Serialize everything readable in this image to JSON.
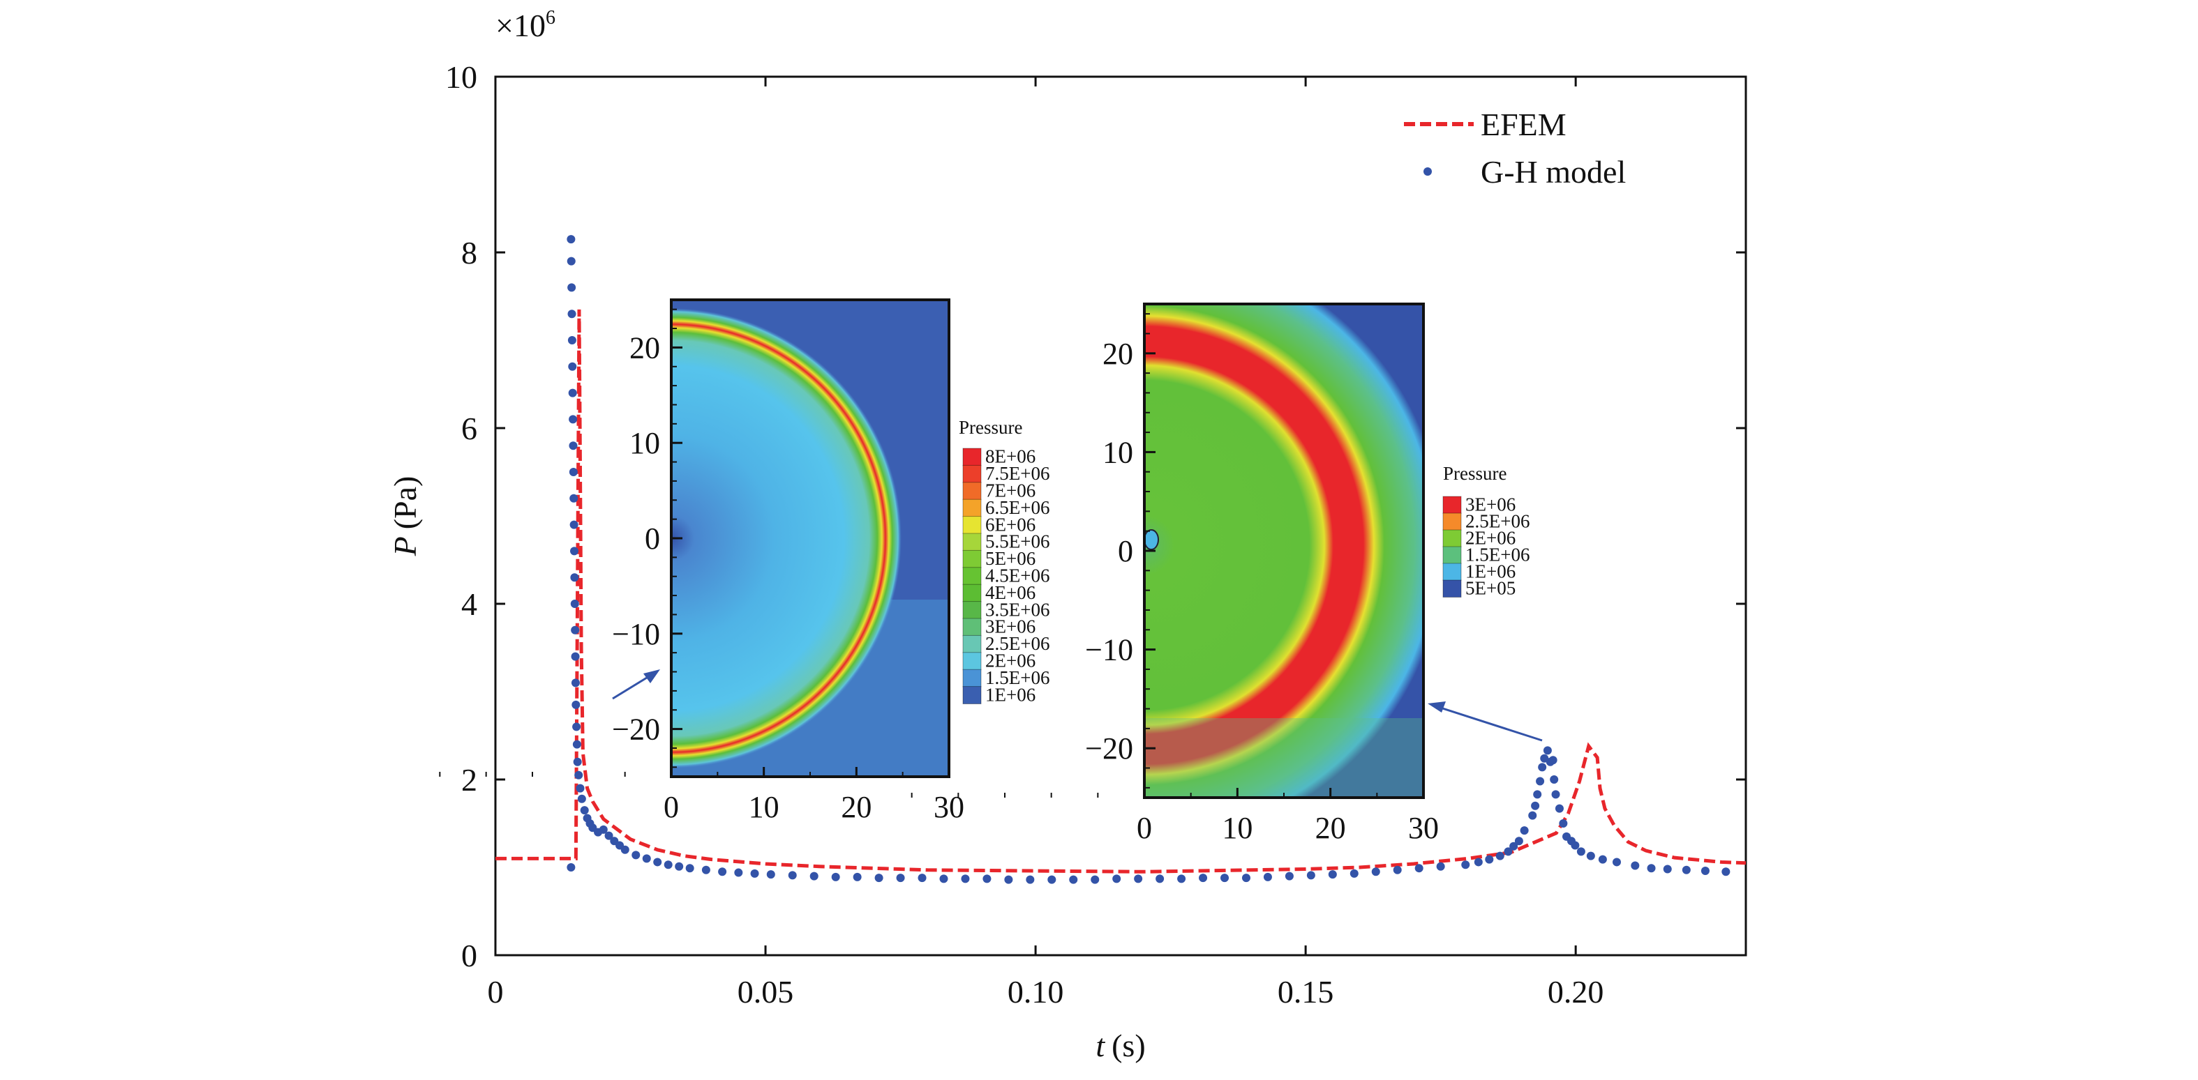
{
  "chart_data": {
    "type": "line",
    "title": "",
    "xlabel": "t (s)",
    "xlabel_var": "t",
    "xlabel_unit": "(s)",
    "ylabel": "P (Pa)",
    "ylabel_var": "P",
    "ylabel_unit": "(Pa)",
    "y_multiplier": "×10",
    "y_multiplier_exp": "6",
    "xlim": [
      0,
      0.2315
    ],
    "ylim": [
      0,
      10
    ],
    "xticks": [
      0,
      0.05,
      0.1,
      0.15,
      0.2
    ],
    "xtick_labels": [
      "0",
      "0.05",
      "0.10",
      "0.15",
      "0.20"
    ],
    "yticks": [
      0,
      2,
      4,
      6,
      8,
      10
    ],
    "ytick_labels": [
      "0",
      "2",
      "4",
      "6",
      "8",
      "10"
    ],
    "grid": false,
    "legend_position": "top-right",
    "series": [
      {
        "name": "EFEM",
        "style": "dashed-line",
        "color": "#e8262b",
        "points": [
          [
            0,
            1.1
          ],
          [
            0.0149,
            1.1
          ],
          [
            0.0149,
            1.1
          ],
          [
            0.0155,
            7.35
          ],
          [
            0.0157,
            5.5
          ],
          [
            0.0159,
            3.5
          ],
          [
            0.0162,
            2.3
          ],
          [
            0.017,
            1.9
          ],
          [
            0.018,
            1.75
          ],
          [
            0.02,
            1.55
          ],
          [
            0.025,
            1.32
          ],
          [
            0.03,
            1.2
          ],
          [
            0.035,
            1.13
          ],
          [
            0.04,
            1.09
          ],
          [
            0.05,
            1.04
          ],
          [
            0.06,
            1.01
          ],
          [
            0.07,
            0.99
          ],
          [
            0.08,
            0.97
          ],
          [
            0.1,
            0.96
          ],
          [
            0.12,
            0.95
          ],
          [
            0.13,
            0.96
          ],
          [
            0.15,
            0.98
          ],
          [
            0.16,
            1.0
          ],
          [
            0.17,
            1.04
          ],
          [
            0.18,
            1.1
          ],
          [
            0.188,
            1.17
          ],
          [
            0.1964,
            1.39
          ],
          [
            0.1986,
            1.61
          ],
          [
            0.2007,
            1.98
          ],
          [
            0.2024,
            2.38
          ],
          [
            0.204,
            2.25
          ],
          [
            0.2045,
            1.9
          ],
          [
            0.2054,
            1.67
          ],
          [
            0.2071,
            1.48
          ],
          [
            0.2097,
            1.29
          ],
          [
            0.213,
            1.19
          ],
          [
            0.2183,
            1.11
          ],
          [
            0.227,
            1.06
          ],
          [
            0.2315,
            1.05
          ]
        ]
      },
      {
        "name": "G-H model",
        "style": "dots",
        "color": "#3353a8",
        "points": [
          [
            0.014,
            1.0
          ],
          [
            0.014,
            8.15
          ],
          [
            0.01405,
            7.9
          ],
          [
            0.0141,
            7.6
          ],
          [
            0.01415,
            7.3
          ],
          [
            0.0142,
            7.0
          ],
          [
            0.01425,
            6.7
          ],
          [
            0.0143,
            6.4
          ],
          [
            0.01435,
            6.1
          ],
          [
            0.0144,
            5.8
          ],
          [
            0.01445,
            5.5
          ],
          [
            0.0145,
            5.2
          ],
          [
            0.01455,
            4.9
          ],
          [
            0.0146,
            4.6
          ],
          [
            0.01465,
            4.3
          ],
          [
            0.0147,
            4.0
          ],
          [
            0.01475,
            3.7
          ],
          [
            0.0148,
            3.4
          ],
          [
            0.01485,
            3.1
          ],
          [
            0.0149,
            2.85
          ],
          [
            0.015,
            2.6
          ],
          [
            0.0151,
            2.4
          ],
          [
            0.0152,
            2.2
          ],
          [
            0.0154,
            2.05
          ],
          [
            0.0157,
            1.9
          ],
          [
            0.016,
            1.78
          ],
          [
            0.0165,
            1.65
          ],
          [
            0.017,
            1.56
          ],
          [
            0.0175,
            1.5
          ],
          [
            0.018,
            1.45
          ],
          [
            0.019,
            1.4
          ],
          [
            0.02,
            1.43
          ],
          [
            0.021,
            1.36
          ],
          [
            0.022,
            1.3
          ],
          [
            0.023,
            1.25
          ],
          [
            0.024,
            1.2
          ],
          [
            0.026,
            1.14
          ],
          [
            0.028,
            1.1
          ],
          [
            0.03,
            1.06
          ],
          [
            0.032,
            1.03
          ],
          [
            0.034,
            1.01
          ],
          [
            0.036,
            0.99
          ],
          [
            0.039,
            0.97
          ],
          [
            0.042,
            0.95
          ],
          [
            0.045,
            0.94
          ],
          [
            0.048,
            0.93
          ],
          [
            0.051,
            0.92
          ],
          [
            0.055,
            0.91
          ],
          [
            0.059,
            0.9
          ],
          [
            0.063,
            0.89
          ],
          [
            0.067,
            0.89
          ],
          [
            0.071,
            0.88
          ],
          [
            0.075,
            0.88
          ],
          [
            0.079,
            0.88
          ],
          [
            0.083,
            0.87
          ],
          [
            0.087,
            0.87
          ],
          [
            0.091,
            0.87
          ],
          [
            0.095,
            0.86
          ],
          [
            0.099,
            0.86
          ],
          [
            0.103,
            0.86
          ],
          [
            0.107,
            0.86
          ],
          [
            0.111,
            0.86
          ],
          [
            0.115,
            0.87
          ],
          [
            0.119,
            0.87
          ],
          [
            0.123,
            0.87
          ],
          [
            0.127,
            0.87
          ],
          [
            0.131,
            0.88
          ],
          [
            0.135,
            0.88
          ],
          [
            0.139,
            0.88
          ],
          [
            0.143,
            0.89
          ],
          [
            0.147,
            0.9
          ],
          [
            0.151,
            0.91
          ],
          [
            0.155,
            0.92
          ],
          [
            0.159,
            0.93
          ],
          [
            0.163,
            0.95
          ],
          [
            0.167,
            0.97
          ],
          [
            0.171,
            0.99
          ],
          [
            0.175,
            1.01
          ],
          [
            0.1796,
            1.03
          ],
          [
            0.182,
            1.06
          ],
          [
            0.184,
            1.09
          ],
          [
            0.186,
            1.13
          ],
          [
            0.1875,
            1.18
          ],
          [
            0.1885,
            1.24
          ],
          [
            0.1895,
            1.3
          ],
          [
            0.1905,
            1.42
          ],
          [
            0.192,
            1.59
          ],
          [
            0.1925,
            1.7
          ],
          [
            0.1929,
            1.83
          ],
          [
            0.1934,
            1.98
          ],
          [
            0.1938,
            2.14
          ],
          [
            0.1942,
            2.24
          ],
          [
            0.1948,
            2.33
          ],
          [
            0.1953,
            2.2
          ],
          [
            0.1958,
            2.22
          ],
          [
            0.196,
            2.0
          ],
          [
            0.1963,
            1.83
          ],
          [
            0.197,
            1.67
          ],
          [
            0.1977,
            1.5
          ],
          [
            0.1983,
            1.35
          ],
          [
            0.1992,
            1.3
          ],
          [
            0.1999,
            1.25
          ],
          [
            0.201,
            1.18
          ],
          [
            0.2028,
            1.13
          ],
          [
            0.205,
            1.09
          ],
          [
            0.2076,
            1.06
          ],
          [
            0.211,
            1.02
          ],
          [
            0.214,
            0.99
          ],
          [
            0.217,
            0.98
          ],
          [
            0.2205,
            0.97
          ],
          [
            0.224,
            0.96
          ],
          [
            0.2278,
            0.95
          ]
        ]
      }
    ],
    "insets": [
      {
        "name": "left-inset",
        "xticks": [
          "0",
          "10",
          "20",
          "30"
        ],
        "yticks": [
          "20",
          "10",
          "0",
          "−10",
          "−20"
        ],
        "colorbar_title": "Pressure",
        "colorbar_labels": [
          "8E+06",
          "7.5E+06",
          "7E+06",
          "6.5E+06",
          "6E+06",
          "5.5E+06",
          "5E+06",
          "4.5E+06",
          "4E+06",
          "3.5E+06",
          "3E+06",
          "2.5E+06",
          "2E+06",
          "1.5E+06",
          "1E+06"
        ],
        "colorbar_colors": [
          "#e8262b",
          "#ec3f2a",
          "#f06b28",
          "#f4a329",
          "#e6e431",
          "#a6d63a",
          "#7ecb34",
          "#66c332",
          "#5cbd33",
          "#58b748",
          "#5fbf77",
          "#68c7b4",
          "#5cc6e0",
          "#4a93d6",
          "#3a5fb0"
        ]
      },
      {
        "name": "right-inset",
        "xticks": [
          "0",
          "10",
          "20",
          "30"
        ],
        "yticks": [
          "20",
          "10",
          "0",
          "−10",
          "−20"
        ],
        "colorbar_title": "Pressure",
        "colorbar_labels": [
          "3E+06",
          "2.5E+06",
          "2E+06",
          "1.5E+06",
          "1E+06",
          "5E+05"
        ],
        "colorbar_colors": [
          "#e8262b",
          "#f58a2a",
          "#7ecb34",
          "#5cc07d",
          "#4cb6e6",
          "#3553a8"
        ]
      }
    ]
  }
}
